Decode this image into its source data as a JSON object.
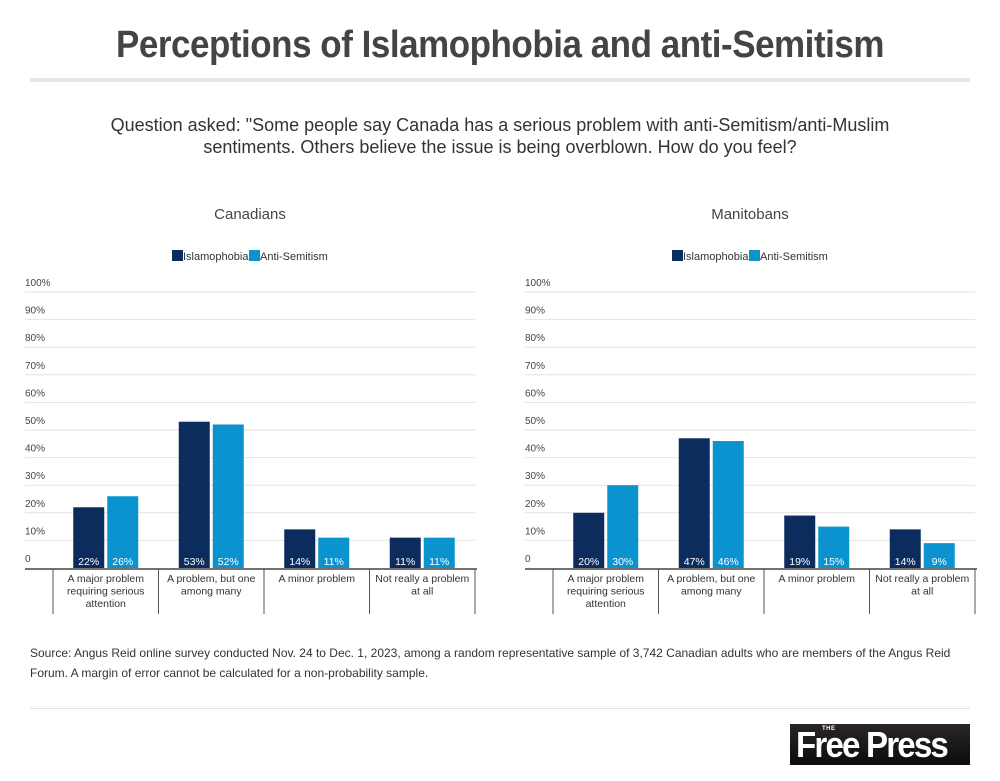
{
  "header": {
    "title": "Perceptions of Islamophobia and anti-Semitism",
    "question_line1": "Question asked: \"Some people say Canada has a serious problem with anti-Semitism/anti-Muslim",
    "question_line2": "sentiments. Others believe the issue is being overblown. How do you feel?"
  },
  "colors": {
    "islamophobia": "#0d2c5e",
    "anti_semitism": "#0b93cf",
    "gridline": "#e2e2e2",
    "axis": "#444444",
    "text": "#333333"
  },
  "chart_data": [
    {
      "type": "bar",
      "title": "Canadians",
      "categories": [
        [
          "A major problem",
          "requiring serious",
          "attention"
        ],
        [
          "A problem, but one",
          "among many"
        ],
        [
          "A minor problem"
        ],
        [
          "Not really a problem",
          "at all"
        ]
      ],
      "series": [
        {
          "name": "Islamophobia",
          "values": [
            22,
            53,
            14,
            11
          ],
          "labels": [
            "22%",
            "53%",
            "14%",
            "11%"
          ]
        },
        {
          "name": "Anti-Semitism",
          "values": [
            26,
            52,
            11,
            11
          ],
          "labels": [
            "26%",
            "52%",
            "11%",
            "11%"
          ]
        }
      ],
      "yticks": [
        "0",
        "10%",
        "20%",
        "30%",
        "40%",
        "50%",
        "60%",
        "70%",
        "80%",
        "90%",
        "100%"
      ],
      "ylim": [
        0,
        100
      ],
      "xlabel": "",
      "ylabel": "",
      "grid": true,
      "legend": "top-center"
    },
    {
      "type": "bar",
      "title": "Manitobans",
      "categories": [
        [
          "A major problem",
          "requiring serious",
          "attention"
        ],
        [
          "A problem, but one",
          "among many"
        ],
        [
          "A minor problem"
        ],
        [
          "Not really a problem",
          "at all"
        ]
      ],
      "series": [
        {
          "name": "Islamophobia",
          "values": [
            20,
            47,
            19,
            14
          ],
          "labels": [
            "20%",
            "47%",
            "19%",
            "14%"
          ]
        },
        {
          "name": "Anti-Semitism",
          "values": [
            30,
            46,
            15,
            9
          ],
          "labels": [
            "30%",
            "46%",
            "15%",
            "9%"
          ]
        }
      ],
      "yticks": [
        "0",
        "10%",
        "20%",
        "30%",
        "40%",
        "50%",
        "60%",
        "70%",
        "80%",
        "90%",
        "100%"
      ],
      "ylim": [
        0,
        100
      ],
      "xlabel": "",
      "ylabel": "",
      "grid": true,
      "legend": "top-center"
    }
  ],
  "footer": {
    "source": "Source: Angus Reid online survey conducted Nov. 24 to Dec. 1, 2023, among a random representative sample of 3,742 Canadian adults who are members of the Angus Reid Forum. A margin of error cannot be calculated for a non-probability sample.",
    "logo_the": "THE",
    "logo_name": "Free Press"
  }
}
